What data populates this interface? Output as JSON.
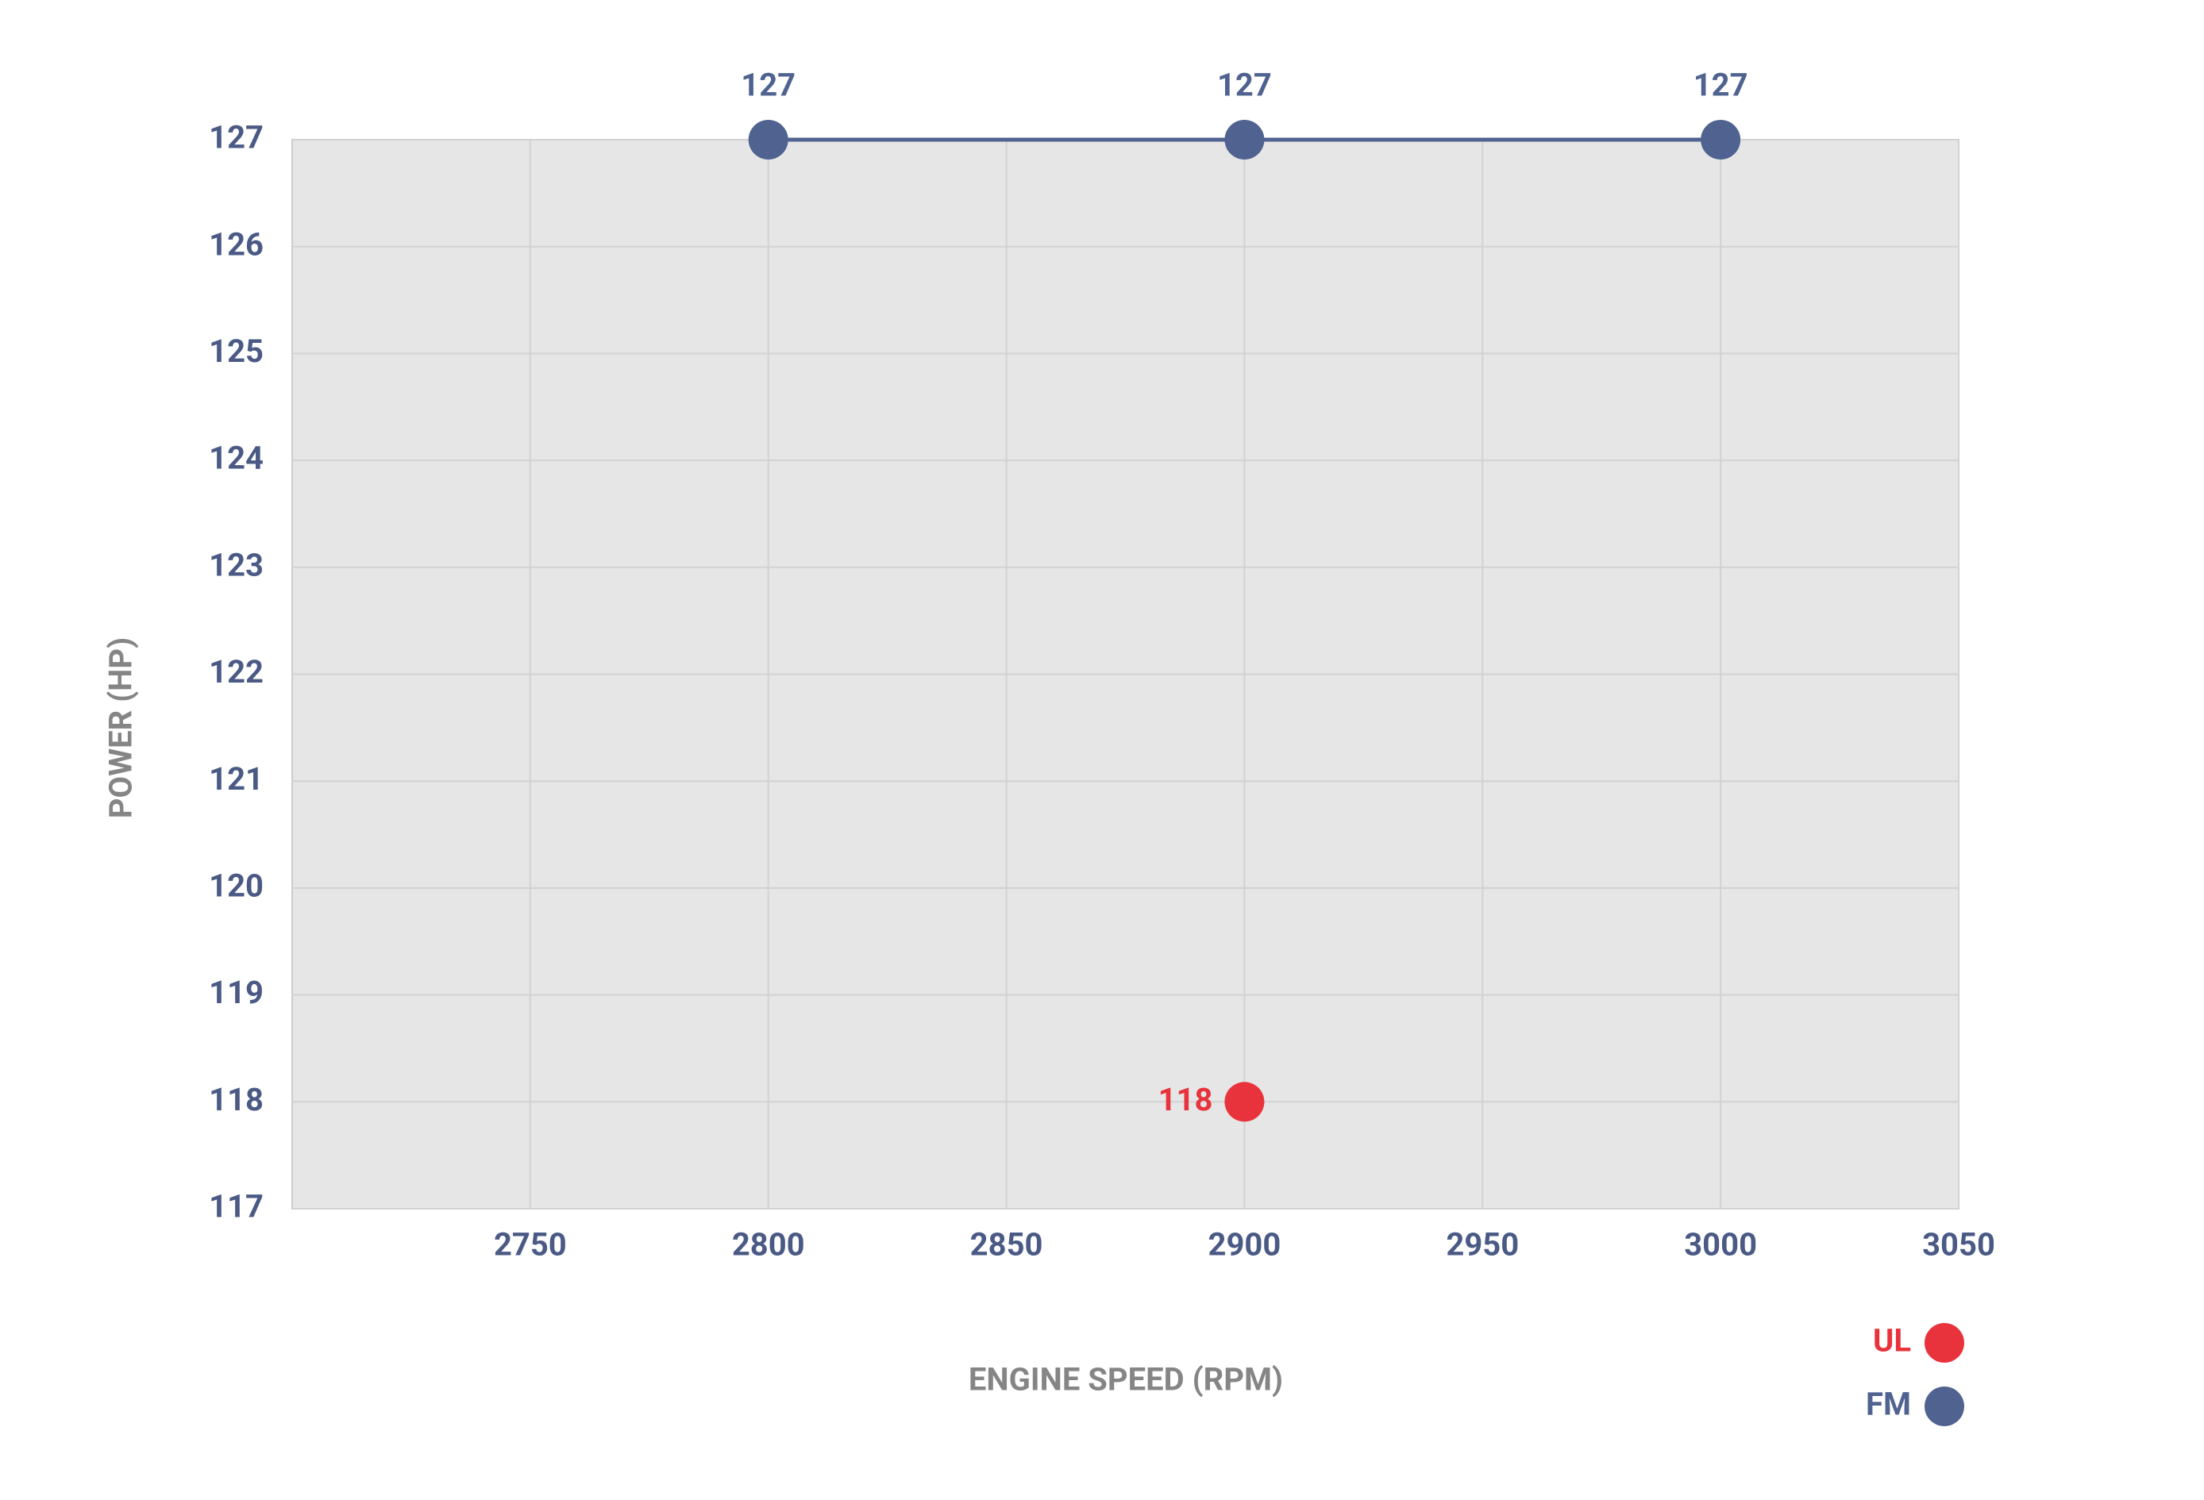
{
  "chart_data": {
    "type": "line",
    "x_label": "ENGINE SPEED (RPM)",
    "y_label": "POWER (HP)",
    "series": [
      {
        "name": "UL",
        "color": "#e8333c",
        "x": [
          2900
        ],
        "values": [
          118
        ]
      },
      {
        "name": "FM",
        "color": "#4f6290",
        "x": [
          2800,
          2900,
          3000
        ],
        "values": [
          127,
          127,
          127
        ]
      }
    ],
    "xlim": [
      2700,
      3050
    ],
    "xticks": [
      2750,
      2800,
      2850,
      2900,
      2950,
      3000,
      3050
    ],
    "ylim": [
      117,
      127
    ],
    "yticks": [
      117,
      118,
      119,
      120,
      121,
      122,
      123,
      124,
      125,
      126,
      127
    ],
    "grid": true,
    "legend": "bottom-right"
  }
}
